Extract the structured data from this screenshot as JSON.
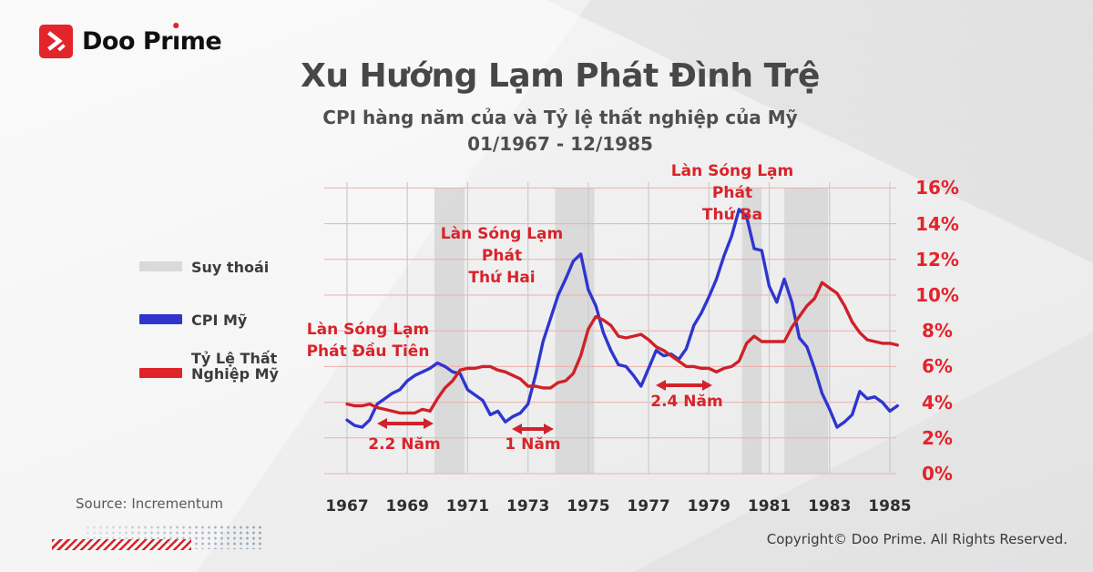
{
  "brand": {
    "name": "Doo Prime",
    "logo_part1": "Doo Pr",
    "logo_i": "ı",
    "logo_part2": "me"
  },
  "header": {
    "title": "Xu Hướng Lạm Phát Đình Trệ",
    "subtitle": "CPI hàng năm của và Tỷ lệ thất nghiệp của Mỹ",
    "period": "01/1967 - 12/1985"
  },
  "legend": {
    "recession": "Suy thoái",
    "cpi": "CPI Mỹ",
    "unemployment_line1": "Tỷ Lệ Thất",
    "unemployment_line2": "Nghiệp Mỹ"
  },
  "annotations": {
    "wave1": {
      "line1": "Làn Sóng Lạm",
      "line2": "Phát Đầu Tiên"
    },
    "wave2": {
      "line1": "Làn Sóng Lạm Phát",
      "line2": "Thứ Hai"
    },
    "wave3": {
      "line1": "Làn Sóng Lạm Phát",
      "line2": "Thứ Ba"
    },
    "gap1": "2.2 Năm",
    "gap2": "1 Năm",
    "gap3": "2.4 Năm"
  },
  "footer": {
    "source": "Source: Incrementum",
    "copyright": "Copyright© Doo Prime. All Rights Reserved."
  },
  "colors": {
    "accent_red": "#d8232a",
    "tick_red": "#e4232b",
    "cpi_blue": "#2e36cf",
    "unemployment_red": "#cf2128",
    "recession_gray": "#d6d6d6",
    "grid_pink": "#ecaeae",
    "grid_gray": "#cbcbcb"
  },
  "chart_data": {
    "type": "line",
    "title": "CPI hàng năm của và Tỷ lệ thất nghiệp của Mỹ, 01/1967 - 12/1985",
    "xlabel": "",
    "ylabel": "",
    "x_start": 1967,
    "x_step": 0.25,
    "xlim": [
      1966.5,
      1986
    ],
    "ylim": [
      0,
      16
    ],
    "grid": true,
    "legend_position": "left",
    "x_ticks": [
      "1967",
      "1969",
      "1971",
      "1973",
      "1975",
      "1977",
      "1979",
      "1981",
      "1983",
      "1985"
    ],
    "y_ticks": [
      "16%",
      "14%",
      "12%",
      "10%",
      "8%",
      "6%",
      "4%",
      "2%",
      "0%"
    ],
    "recessions": [
      [
        1969.9,
        1970.9
      ],
      [
        1973.9,
        1975.2
      ],
      [
        1980.1,
        1980.75
      ],
      [
        1981.5,
        1982.95
      ]
    ],
    "series": [
      {
        "name": "CPI Mỹ",
        "color": "#2e36cf",
        "values": [
          3.0,
          2.7,
          2.6,
          3.0,
          3.9,
          4.2,
          4.5,
          4.7,
          5.2,
          5.5,
          5.7,
          5.9,
          6.2,
          6.0,
          5.7,
          5.6,
          4.7,
          4.4,
          4.1,
          3.3,
          3.5,
          2.9,
          3.2,
          3.4,
          3.9,
          5.5,
          7.4,
          8.7,
          10.0,
          10.9,
          11.9,
          12.3,
          10.3,
          9.4,
          7.9,
          6.9,
          6.1,
          6.0,
          5.5,
          4.9,
          5.9,
          6.9,
          6.6,
          6.7,
          6.4,
          7.0,
          8.3,
          9.0,
          9.9,
          10.9,
          12.2,
          13.3,
          14.8,
          14.4,
          12.6,
          12.5,
          10.5,
          9.6,
          10.9,
          9.6,
          7.6,
          7.1,
          5.9,
          4.5,
          3.6,
          2.6,
          2.9,
          3.3,
          4.6,
          4.2,
          4.3,
          4.0,
          3.5,
          3.8
        ]
      },
      {
        "name": "Tỷ Lệ Thất Nghiệp Mỹ",
        "color": "#cf2128",
        "values": [
          3.9,
          3.8,
          3.8,
          3.9,
          3.7,
          3.6,
          3.5,
          3.4,
          3.4,
          3.4,
          3.6,
          3.5,
          4.2,
          4.8,
          5.2,
          5.8,
          5.9,
          5.9,
          6.0,
          6.0,
          5.8,
          5.7,
          5.5,
          5.3,
          4.9,
          4.9,
          4.8,
          4.8,
          5.1,
          5.2,
          5.6,
          6.6,
          8.1,
          8.8,
          8.6,
          8.3,
          7.7,
          7.6,
          7.7,
          7.8,
          7.5,
          7.1,
          6.9,
          6.6,
          6.3,
          6.0,
          6.0,
          5.9,
          5.9,
          5.7,
          5.9,
          6.0,
          6.3,
          7.3,
          7.7,
          7.4,
          7.4,
          7.4,
          7.4,
          8.2,
          8.8,
          9.4,
          9.8,
          10.7,
          10.4,
          10.1,
          9.4,
          8.5,
          7.9,
          7.5,
          7.4,
          7.3,
          7.3,
          7.2
        ]
      }
    ]
  }
}
